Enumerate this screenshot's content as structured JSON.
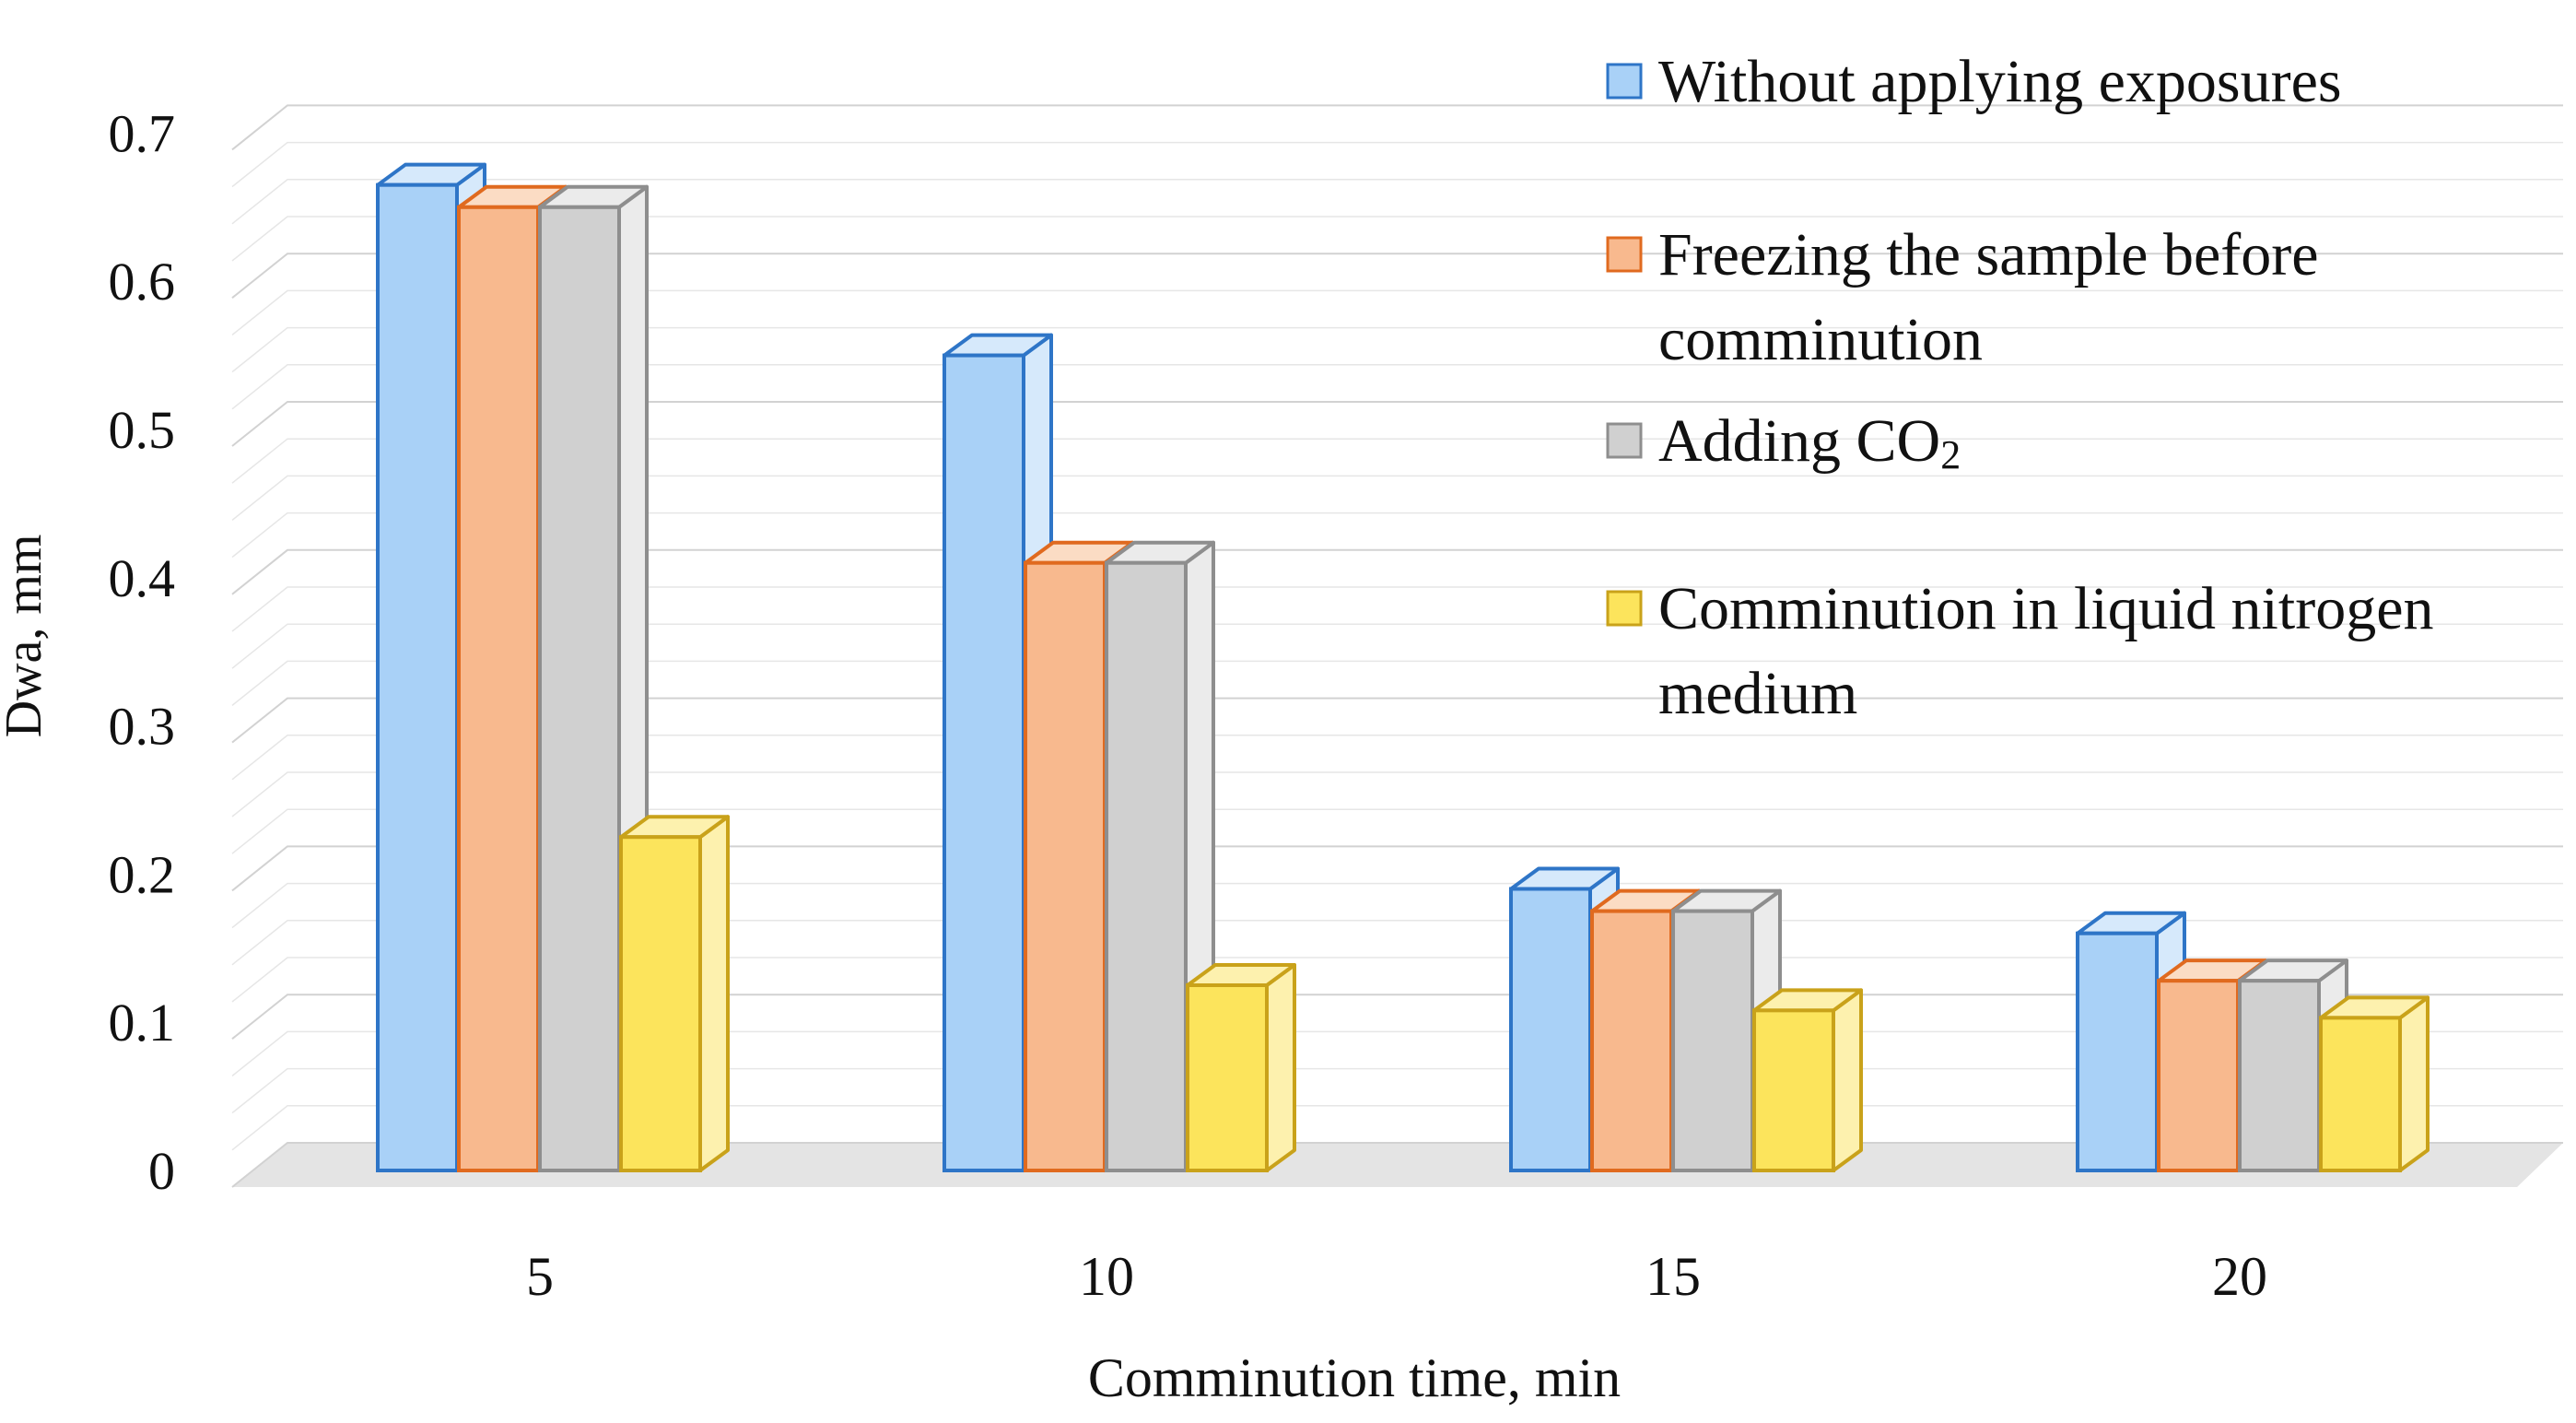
{
  "chart_data": {
    "type": "bar",
    "style": "3d-clustered-column",
    "title": "",
    "xlabel": "Comminution time, min",
    "ylabel": "Dwa, mm",
    "categories": [
      "5",
      "10",
      "15",
      "20"
    ],
    "yticks": [
      "0",
      "0.1",
      "0.2",
      "0.3",
      "0.4",
      "0.5",
      "0.6",
      "0.7"
    ],
    "ylim": [
      0,
      0.7
    ],
    "grid": true,
    "legend_position": "top-right",
    "series": [
      {
        "name": "Without applying exposures",
        "legend_lines": [
          "Without applying exposures"
        ],
        "color_front": "#A9D1F7",
        "color_side": "#D6E9FB",
        "color_edge": "#2E75C7",
        "values": [
          0.665,
          0.55,
          0.19,
          0.16
        ]
      },
      {
        "name": "Freezing the sample before comminution",
        "legend_lines": [
          "Freezing the sample before",
          "comminution"
        ],
        "color_front": "#F8B98E",
        "color_side": "#FBDCC4",
        "color_edge": "#E06A1F",
        "values": [
          0.65,
          0.41,
          0.175,
          0.128
        ]
      },
      {
        "name": "Adding CO2",
        "legend_lines": [
          "Adding CO",
          "2"
        ],
        "color_front": "#D0D0D0",
        "color_side": "#EBEBEB",
        "color_edge": "#8E8E8E",
        "values": [
          0.65,
          0.41,
          0.175,
          0.128
        ]
      },
      {
        "name": "Comminution in liquid nitrogen medium",
        "legend_lines": [
          "Comminution in liquid nitrogen",
          "medium"
        ],
        "color_front": "#FCE45C",
        "color_side": "#FDF1AE",
        "color_edge": "#C9A21A",
        "values": [
          0.225,
          0.125,
          0.108,
          0.103
        ]
      }
    ]
  }
}
